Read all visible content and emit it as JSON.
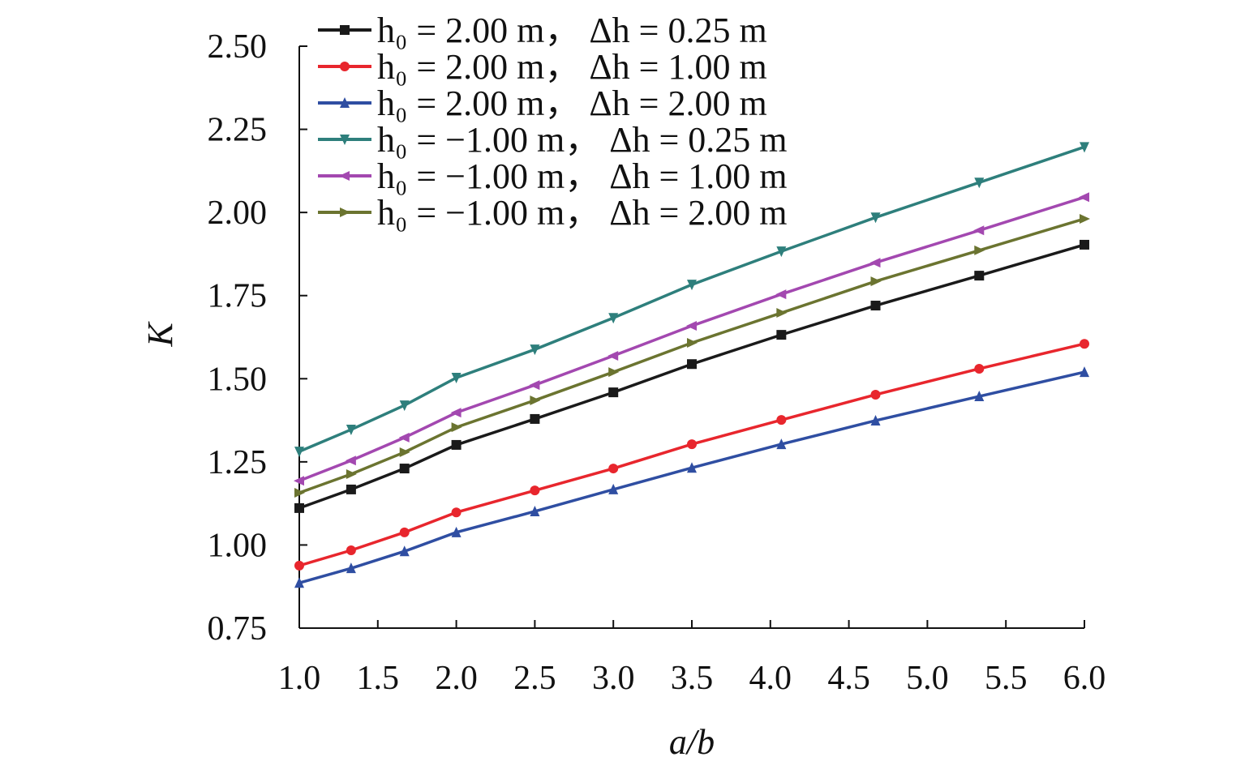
{
  "chart_data": {
    "type": "line",
    "title": "",
    "xlabel": "a/b",
    "ylabel": "K",
    "xlim": [
      1.0,
      6.0
    ],
    "ylim": [
      0.75,
      2.5
    ],
    "grid": false,
    "legend_position": "top-left",
    "x_ticks": [
      "1.0",
      "1.5",
      "2.0",
      "2.5",
      "3.0",
      "3.5",
      "4.0",
      "4.5",
      "5.0",
      "5.5",
      "6.0"
    ],
    "y_ticks": [
      "0.75",
      "1.00",
      "1.25",
      "1.50",
      "1.75",
      "2.00",
      "2.25",
      "2.50"
    ],
    "x": [
      1.0,
      1.33,
      1.67,
      2.0,
      2.5,
      3.0,
      3.5,
      4.07,
      4.67,
      5.33,
      6.0
    ],
    "series": [
      {
        "name": "h₀ = 2.00 m， Δh = 0.25 m",
        "color": "#1a1a1a",
        "marker": "square",
        "values": [
          1.111,
          1.167,
          1.23,
          1.301,
          1.379,
          1.459,
          1.544,
          1.632,
          1.72,
          1.81,
          1.903
        ]
      },
      {
        "name": "h₀ = 2.00 m， Δh = 1.00 m",
        "color": "#e8262d",
        "marker": "circle",
        "values": [
          0.938,
          0.984,
          1.038,
          1.098,
          1.164,
          1.23,
          1.303,
          1.376,
          1.452,
          1.53,
          1.605
        ]
      },
      {
        "name": "h₀ = 2.00 m， Δh = 2.00 m",
        "color": "#2f4ea2",
        "marker": "triangle-up",
        "values": [
          0.886,
          0.93,
          0.981,
          1.038,
          1.101,
          1.167,
          1.232,
          1.303,
          1.374,
          1.447,
          1.52
        ]
      },
      {
        "name": "h₀ = −1.00 m， Δh = 0.25 m",
        "color": "#2e7f7c",
        "marker": "triangle-down",
        "values": [
          1.281,
          1.347,
          1.42,
          1.503,
          1.588,
          1.683,
          1.783,
          1.883,
          1.985,
          2.09,
          2.197
        ]
      },
      {
        "name": "h₀ = −1.00 m， Δh = 1.00 m",
        "color": "#a348b0",
        "marker": "triangle-left",
        "values": [
          1.193,
          1.254,
          1.323,
          1.398,
          1.481,
          1.569,
          1.659,
          1.754,
          1.849,
          1.946,
          2.046
        ]
      },
      {
        "name": "h₀ = −1.00 m， Δh = 2.00 m",
        "color": "#6b7430",
        "marker": "triangle-right",
        "values": [
          1.157,
          1.213,
          1.279,
          1.354,
          1.435,
          1.52,
          1.608,
          1.698,
          1.793,
          1.886,
          1.981
        ]
      }
    ]
  }
}
